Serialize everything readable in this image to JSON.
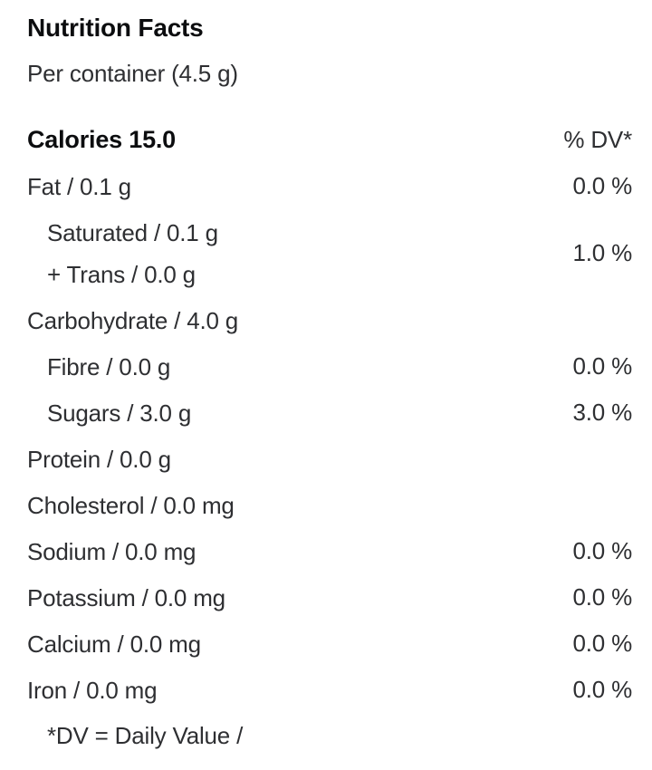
{
  "header": {
    "title": "Nutrition Facts",
    "serving": "Per container (4.5 g)"
  },
  "table": {
    "calories_label": "Calories 15.0",
    "dv_header": "% DV*",
    "rows": [
      {
        "label": "Fat / 0.1 g",
        "label2": "",
        "dv": "0.0 %",
        "indent": false,
        "group": false
      },
      {
        "label": "Saturated / 0.1 g",
        "label2": "+ Trans / 0.0 g",
        "dv": "1.0 %",
        "indent": true,
        "group": true
      },
      {
        "label": "Carbohydrate / 4.0 g",
        "label2": "",
        "dv": "",
        "indent": false,
        "group": false
      },
      {
        "label": "Fibre / 0.0 g",
        "label2": "",
        "dv": "0.0 %",
        "indent": true,
        "group": false
      },
      {
        "label": "Sugars / 3.0 g",
        "label2": "",
        "dv": "3.0 %",
        "indent": true,
        "group": false
      },
      {
        "label": "Protein / 0.0 g",
        "label2": "",
        "dv": "",
        "indent": false,
        "group": false
      },
      {
        "label": "Cholesterol / 0.0 mg",
        "label2": "",
        "dv": "",
        "indent": false,
        "group": false
      },
      {
        "label": "Sodium / 0.0 mg",
        "label2": "",
        "dv": "0.0 %",
        "indent": false,
        "group": false
      },
      {
        "label": "Potassium / 0.0 mg",
        "label2": "",
        "dv": "0.0 %",
        "indent": false,
        "group": false
      },
      {
        "label": "Calcium / 0.0 mg",
        "label2": "",
        "dv": "0.0 %",
        "indent": false,
        "group": false
      },
      {
        "label": "Iron / 0.0 mg",
        "label2": "",
        "dv": "0.0 %",
        "indent": false,
        "group": false
      }
    ],
    "footnote": "*DV = Daily Value /"
  },
  "colors": {
    "background": "#ffffff",
    "text": "#2e2f32",
    "heading": "#0c0d0f"
  }
}
